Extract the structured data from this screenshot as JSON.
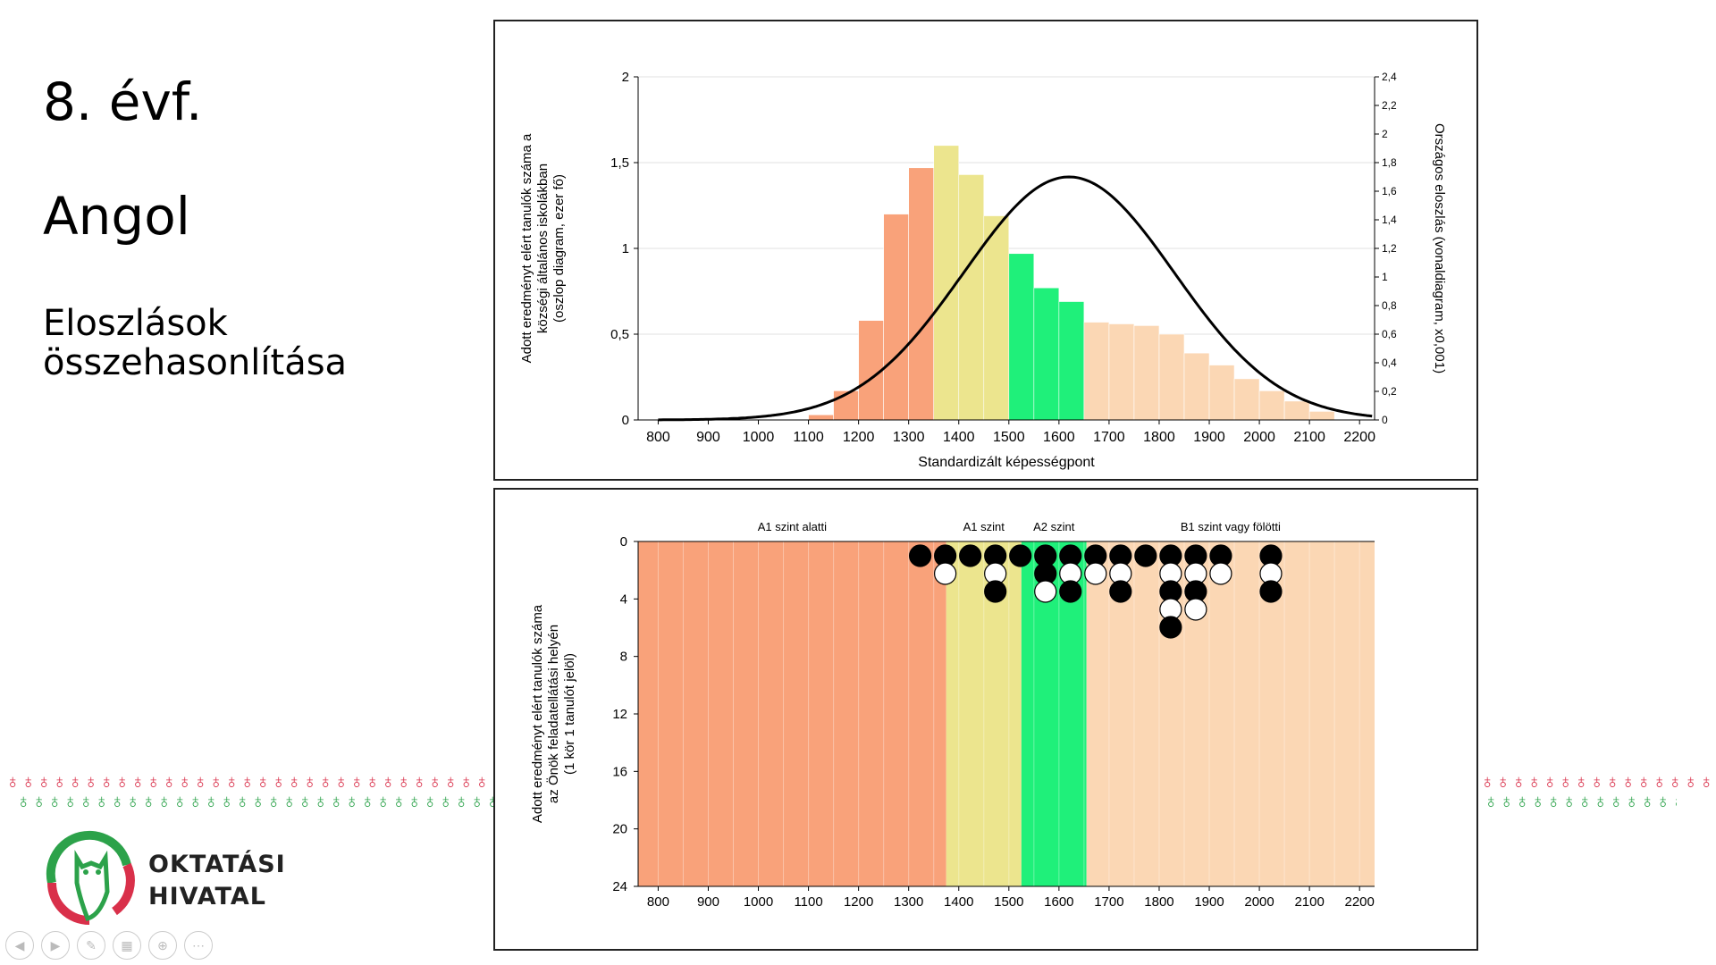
{
  "slide": {
    "grade": "8. évf.",
    "subject": "Angol",
    "subtitle": "Eloszlások összehasonlítása",
    "logo_line1": "OKTATÁSI",
    "logo_line2": "HIVATAL"
  },
  "icons": {
    "controls": [
      "previous-icon",
      "next-icon",
      "pen-icon",
      "slides-icon",
      "zoom-icon",
      "more-icon"
    ],
    "decoration": "apple-pattern-icon"
  },
  "colors": {
    "below_A1": "#f9a27a",
    "A1": "#ece58e",
    "A2": "#1ff07a",
    "B1": "#fbd7b4",
    "curve": "#000000",
    "deco_red": "#d9304a",
    "deco_green": "#2ca24a"
  },
  "chart_data": [
    {
      "type": "bar",
      "title": "",
      "xlabel": "Standardizált képességpont",
      "ylabel": "Adott eredményt elért tanulók száma a községi általános iskolákban (oszlop diagram, ezer fő)",
      "y2label": "Országos eloszlás (vonaldiagram, x0,001)",
      "xlim": [
        760,
        2230
      ],
      "ylim": [
        0,
        2
      ],
      "y2lim": [
        0,
        2.4
      ],
      "x_ticks": [
        "800",
        "900",
        "1000",
        "1100",
        "1200",
        "1300",
        "1400",
        "1500",
        "1600",
        "1700",
        "1800",
        "1900",
        "2000",
        "2100",
        "2200"
      ],
      "y_ticks": [
        "0",
        "0,5",
        "1",
        "1,5",
        "2"
      ],
      "y2_ticks": [
        "0",
        "0,2",
        "0,4",
        "0,6",
        "0,8",
        "1",
        "1,2",
        "1,4",
        "1,6",
        "1,8",
        "2",
        "2,2",
        "2,4"
      ],
      "bin_width": 50,
      "bin_starts": [
        1100,
        1150,
        1200,
        1250,
        1300,
        1350,
        1400,
        1450,
        1500,
        1550,
        1600,
        1650,
        1700,
        1750,
        1800,
        1850,
        1900,
        1950,
        2000,
        2050,
        2100
      ],
      "values": [
        0.03,
        0.17,
        0.58,
        1.2,
        1.47,
        1.6,
        1.43,
        1.19,
        0.97,
        0.77,
        0.69,
        0.57,
        0.56,
        0.55,
        0.5,
        0.39,
        0.32,
        0.24,
        0.17,
        0.11,
        0.05
      ],
      "level_boundaries": [
        1375,
        1525,
        1655
      ],
      "series": [
        {
          "name": "",
          "type": "line",
          "mean": 1620,
          "sd": 210,
          "peak": 1.7,
          "xrange": [
            800,
            2225
          ]
        }
      ]
    },
    {
      "type": "scatter",
      "title": "",
      "xlabel": "",
      "ylabel": "Adott eredményt elért tanulók száma az Önök feladatellátási helyén (1 kör 1 tanulót jelöl)",
      "xlim": [
        760,
        2230
      ],
      "ylim": [
        0,
        24
      ],
      "y_reversed": true,
      "x_ticks": [
        "800",
        "900",
        "1000",
        "1100",
        "1200",
        "1300",
        "1400",
        "1500",
        "1600",
        "1700",
        "1800",
        "1900",
        "2000",
        "2100",
        "2200"
      ],
      "y_ticks": [
        "0",
        "4",
        "8",
        "12",
        "16",
        "20",
        "24"
      ],
      "levels": [
        {
          "label": "A1 szint alatti",
          "from": 760,
          "to": 1375
        },
        {
          "label": "A1 szint",
          "from": 1375,
          "to": 1525
        },
        {
          "label": "A2 szint",
          "from": 1525,
          "to": 1655
        },
        {
          "label": "B1 szint vagy fölötti",
          "from": 1655,
          "to": 2230
        }
      ],
      "columns": [
        {
          "x": 1323,
          "circles": [
            "black"
          ]
        },
        {
          "x": 1373,
          "circles": [
            "black",
            "white"
          ]
        },
        {
          "x": 1423,
          "circles": [
            "black"
          ]
        },
        {
          "x": 1473,
          "circles": [
            "black",
            "white",
            "black"
          ]
        },
        {
          "x": 1523,
          "circles": [
            "black"
          ]
        },
        {
          "x": 1573,
          "circles": [
            "black",
            "black",
            "white"
          ]
        },
        {
          "x": 1623,
          "circles": [
            "black",
            "white",
            "black"
          ]
        },
        {
          "x": 1673,
          "circles": [
            "black",
            "white"
          ]
        },
        {
          "x": 1723,
          "circles": [
            "black",
            "white",
            "black"
          ]
        },
        {
          "x": 1773,
          "circles": [
            "black"
          ]
        },
        {
          "x": 1823,
          "circles": [
            "black",
            "white",
            "black",
            "white",
            "black"
          ]
        },
        {
          "x": 1873,
          "circles": [
            "black",
            "white",
            "black",
            "white"
          ]
        },
        {
          "x": 1923,
          "circles": [
            "black",
            "white"
          ]
        },
        {
          "x": 2023,
          "circles": [
            "black",
            "white",
            "black"
          ]
        }
      ]
    }
  ]
}
